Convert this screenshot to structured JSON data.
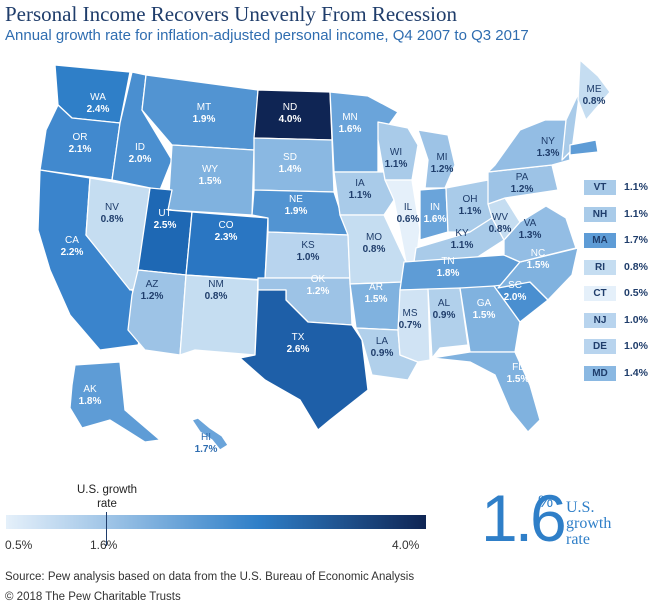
{
  "header": {
    "title": "Personal Income Recovers Unevenly From Recession",
    "subtitle": "Annual growth rate for inflation-adjusted personal income, Q4 2007 to Q3 2017"
  },
  "states": {
    "WA": {
      "abbr": "WA",
      "value": "2.4%"
    },
    "OR": {
      "abbr": "OR",
      "value": "2.1%"
    },
    "CA": {
      "abbr": "CA",
      "value": "2.2%"
    },
    "NV": {
      "abbr": "NV",
      "value": "0.8%"
    },
    "ID": {
      "abbr": "ID",
      "value": "2.0%"
    },
    "MT": {
      "abbr": "MT",
      "value": "1.9%"
    },
    "WY": {
      "abbr": "WY",
      "value": "1.5%"
    },
    "UT": {
      "abbr": "UT",
      "value": "2.5%"
    },
    "CO": {
      "abbr": "CO",
      "value": "2.3%"
    },
    "AZ": {
      "abbr": "AZ",
      "value": "1.2%"
    },
    "NM": {
      "abbr": "NM",
      "value": "0.8%"
    },
    "ND": {
      "abbr": "ND",
      "value": "4.0%"
    },
    "SD": {
      "abbr": "SD",
      "value": "1.4%"
    },
    "NE": {
      "abbr": "NE",
      "value": "1.9%"
    },
    "KS": {
      "abbr": "KS",
      "value": "1.0%"
    },
    "OK": {
      "abbr": "OK",
      "value": "1.2%"
    },
    "TX": {
      "abbr": "TX",
      "value": "2.6%"
    },
    "MN": {
      "abbr": "MN",
      "value": "1.6%"
    },
    "IA": {
      "abbr": "IA",
      "value": "1.1%"
    },
    "MO": {
      "abbr": "MO",
      "value": "0.8%"
    },
    "AR": {
      "abbr": "AR",
      "value": "1.5%"
    },
    "LA": {
      "abbr": "LA",
      "value": "0.9%"
    },
    "WI": {
      "abbr": "WI",
      "value": "1.1%"
    },
    "IL": {
      "abbr": "IL",
      "value": "0.6%"
    },
    "MI": {
      "abbr": "MI",
      "value": "1.2%"
    },
    "IN": {
      "abbr": "IN",
      "value": "1.6%"
    },
    "OH": {
      "abbr": "OH",
      "value": "1.1%"
    },
    "KY": {
      "abbr": "KY",
      "value": "1.1%"
    },
    "TN": {
      "abbr": "TN",
      "value": "1.8%"
    },
    "MS": {
      "abbr": "MS",
      "value": "0.7%"
    },
    "AL": {
      "abbr": "AL",
      "value": "0.9%"
    },
    "GA": {
      "abbr": "GA",
      "value": "1.5%"
    },
    "FL": {
      "abbr": "FL",
      "value": "1.5%"
    },
    "SC": {
      "abbr": "SC",
      "value": "2.0%"
    },
    "NC": {
      "abbr": "NC",
      "value": "1.5%"
    },
    "VA": {
      "abbr": "VA",
      "value": "1.3%"
    },
    "WV": {
      "abbr": "WV",
      "value": "0.8%"
    },
    "PA": {
      "abbr": "PA",
      "value": "1.2%"
    },
    "NY": {
      "abbr": "NY",
      "value": "1.3%"
    },
    "ME": {
      "abbr": "ME",
      "value": "0.8%"
    },
    "AK": {
      "abbr": "AK",
      "value": "1.8%"
    },
    "HI": {
      "abbr": "HI",
      "value": "1.7%"
    }
  },
  "small_states": [
    {
      "abbr": "VT",
      "value": "1.1%",
      "color": "#a9cbe9"
    },
    {
      "abbr": "NH",
      "value": "1.1%",
      "color": "#a9cbe9"
    },
    {
      "abbr": "MA",
      "value": "1.7%",
      "color": "#5e9cd6"
    },
    {
      "abbr": "RI",
      "value": "0.8%",
      "color": "#c5ddf1"
    },
    {
      "abbr": "CT",
      "value": "0.5%",
      "color": "#e5f0fa"
    },
    {
      "abbr": "NJ",
      "value": "1.0%",
      "color": "#b8d4ee"
    },
    {
      "abbr": "DE",
      "value": "1.0%",
      "color": "#b8d4ee"
    },
    {
      "abbr": "MD",
      "value": "1.4%",
      "color": "#8ab8e2"
    }
  ],
  "legend": {
    "min": "0.5%",
    "mid": "1.6%",
    "max": "4.0%",
    "us_tick_label": "U.S. growth rate"
  },
  "us_rate": {
    "number": "1.6",
    "unit": "%",
    "caption": "U.S. growth rate"
  },
  "footer": {
    "source": "Source: Pew analysis based on data from the U.S. Bureau of Economic Analysis",
    "copyright": "© 2018 The Pew Charitable Trusts"
  }
}
